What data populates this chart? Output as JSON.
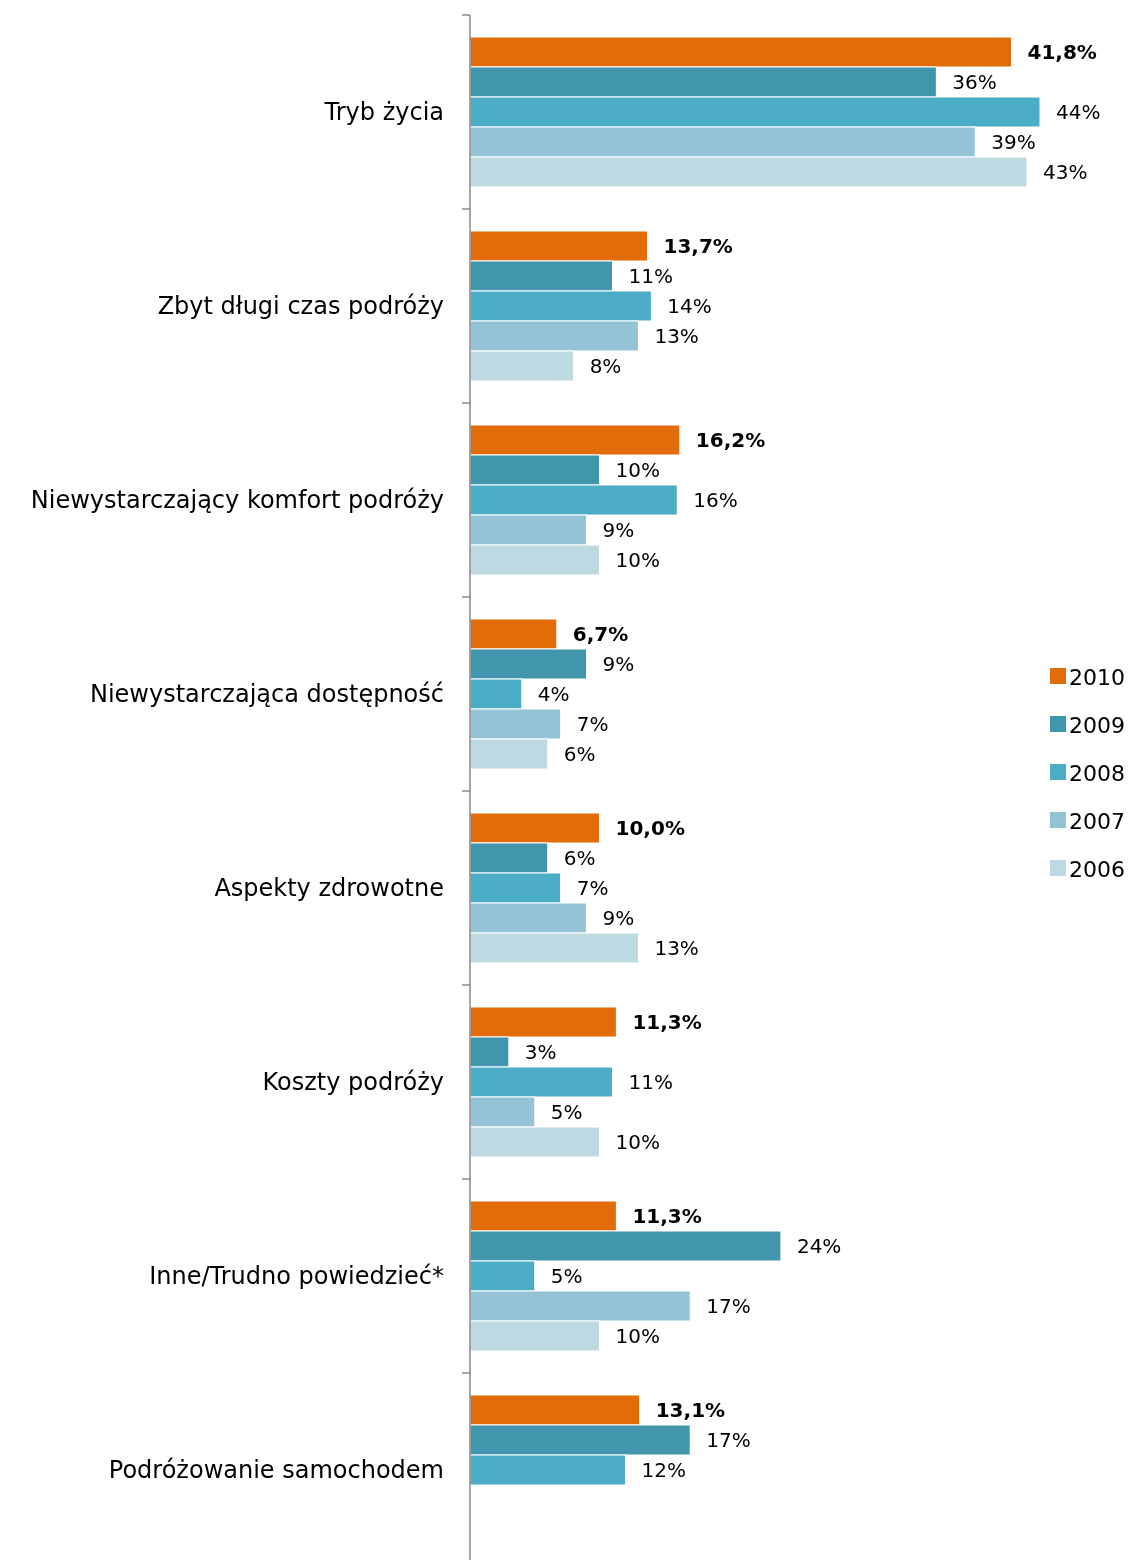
{
  "chart_data": {
    "type": "bar",
    "orientation": "horizontal",
    "categories": [
      "Tryb życia",
      "Zbyt długi czas podróży",
      "Niewystarczający komfort podróży",
      "Niewystarczająca dostępność",
      "Aspekty zdrowotne",
      "Koszty podróży",
      "Inne/Trudno powiedzieć*",
      "Podróżowanie samochodem"
    ],
    "series": [
      {
        "name": "2010",
        "color": "#e36c0a",
        "values": [
          41.8,
          13.7,
          16.2,
          6.7,
          10.0,
          11.3,
          11.3,
          13.1
        ],
        "value_labels": [
          "41,8%",
          "13,7%",
          "16,2%",
          "6,7%",
          "10,0%",
          "11,3%",
          "11,3%",
          "13,1%"
        ]
      },
      {
        "name": "2009",
        "color": "#4196ae",
        "values": [
          36,
          11,
          10,
          9,
          6,
          3,
          24,
          17
        ],
        "value_labels": [
          "36%",
          "11%",
          "10%",
          "9%",
          "6%",
          "3%",
          "24%",
          "17%"
        ]
      },
      {
        "name": "2008",
        "color": "#4bacc6",
        "values": [
          44,
          14,
          16,
          4,
          7,
          11,
          5,
          12
        ],
        "value_labels": [
          "44%",
          "14%",
          "16%",
          "4%",
          "7%",
          "11%",
          "5%",
          "12%"
        ]
      },
      {
        "name": "2007",
        "color": "#93c3d4",
        "values": [
          39,
          13,
          9,
          7,
          9,
          5,
          17,
          null
        ],
        "value_labels": [
          "39%",
          "13%",
          "9%",
          "7%",
          "9%",
          "5%",
          "17%",
          null
        ]
      },
      {
        "name": "2006",
        "color": "#bfd9e3",
        "values": [
          43,
          8,
          10,
          6,
          13,
          10,
          10,
          null
        ],
        "value_labels": [
          "43%",
          "8%",
          "10%",
          "6%",
          "13%",
          "10%",
          "10%",
          null
        ]
      }
    ],
    "legend": "right"
  }
}
